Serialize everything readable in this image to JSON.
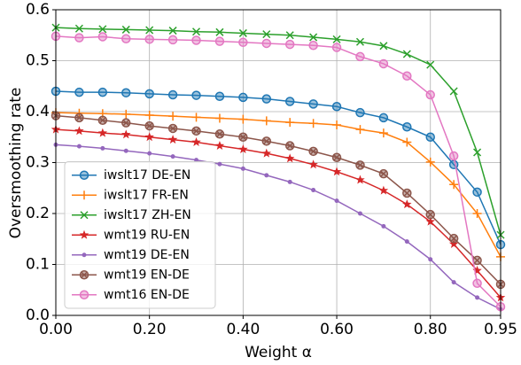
{
  "chart_data": {
    "type": "line",
    "x_label": "Weight α",
    "y_label": "Oversmoothing rate",
    "x": [
      0,
      0.05,
      0.1,
      0.15,
      0.2,
      0.25,
      0.3,
      0.35,
      0.4,
      0.45,
      0.5,
      0.55,
      0.6,
      0.65,
      0.7,
      0.75,
      0.8,
      0.85,
      0.9,
      0.95
    ],
    "xlim": [
      0,
      0.95
    ],
    "xticks": [
      {
        "value": 0,
        "label": "0.00"
      },
      {
        "value": 0.2,
        "label": "0.20"
      },
      {
        "value": 0.4,
        "label": "0.40"
      },
      {
        "value": 0.6,
        "label": "0.60"
      },
      {
        "value": 0.8,
        "label": "0.80"
      },
      0.95
    ],
    "ylim": [
      0,
      0.6
    ],
    "yticks": [
      {
        "value": 0,
        "label": "0.0"
      },
      0.1,
      0.2,
      0.3,
      0.4,
      0.5,
      0.6
    ],
    "grid": true,
    "legend": "lower left",
    "series": [
      {
        "name": "iwslt17 DE-EN",
        "color": "#1f77b4",
        "marker": "o",
        "values": [
          0.44,
          0.438,
          0.438,
          0.437,
          0.435,
          0.433,
          0.432,
          0.43,
          0.428,
          0.425,
          0.42,
          0.415,
          0.41,
          0.398,
          0.388,
          0.37,
          0.35,
          0.296,
          0.242,
          0.139
        ]
      },
      {
        "name": "iwslt17 FR-EN",
        "color": "#ff7f0e",
        "marker": "+",
        "values": [
          0.398,
          0.397,
          0.396,
          0.395,
          0.393,
          0.391,
          0.389,
          0.387,
          0.385,
          0.382,
          0.379,
          0.377,
          0.374,
          0.365,
          0.358,
          0.34,
          0.301,
          0.257,
          0.2,
          0.115
        ]
      },
      {
        "name": "iwslt17 ZH-EN",
        "color": "#2ca02c",
        "marker": "x",
        "values": [
          0.565,
          0.563,
          0.562,
          0.561,
          0.56,
          0.559,
          0.557,
          0.556,
          0.554,
          0.552,
          0.55,
          0.546,
          0.542,
          0.537,
          0.529,
          0.513,
          0.492,
          0.44,
          0.32,
          0.158
        ]
      },
      {
        "name": "wmt19 RU-EN",
        "color": "#d62728",
        "marker": "*",
        "values": [
          0.365,
          0.362,
          0.358,
          0.355,
          0.35,
          0.345,
          0.34,
          0.333,
          0.326,
          0.318,
          0.308,
          0.296,
          0.282,
          0.266,
          0.245,
          0.218,
          0.184,
          0.14,
          0.088,
          0.035
        ]
      },
      {
        "name": "wmt19 DE-EN",
        "color": "#9467bd",
        "marker": ".",
        "values": [
          0.335,
          0.332,
          0.328,
          0.323,
          0.318,
          0.312,
          0.305,
          0.297,
          0.288,
          0.275,
          0.262,
          0.246,
          0.225,
          0.2,
          0.175,
          0.145,
          0.11,
          0.065,
          0.035,
          0.012
        ]
      },
      {
        "name": "wmt19 EN-DE",
        "color": "#8c564b",
        "marker": "X",
        "values": [
          0.392,
          0.388,
          0.383,
          0.378,
          0.372,
          0.367,
          0.362,
          0.356,
          0.35,
          0.342,
          0.333,
          0.322,
          0.31,
          0.295,
          0.278,
          0.24,
          0.198,
          0.151,
          0.108,
          0.061
        ]
      },
      {
        "name": "wmt16 EN-DE",
        "color": "#e377c2",
        "marker": "o",
        "values": [
          0.548,
          0.545,
          0.547,
          0.543,
          0.542,
          0.541,
          0.54,
          0.538,
          0.536,
          0.534,
          0.532,
          0.53,
          0.526,
          0.508,
          0.494,
          0.47,
          0.433,
          0.313,
          0.063,
          0.017
        ]
      }
    ]
  }
}
